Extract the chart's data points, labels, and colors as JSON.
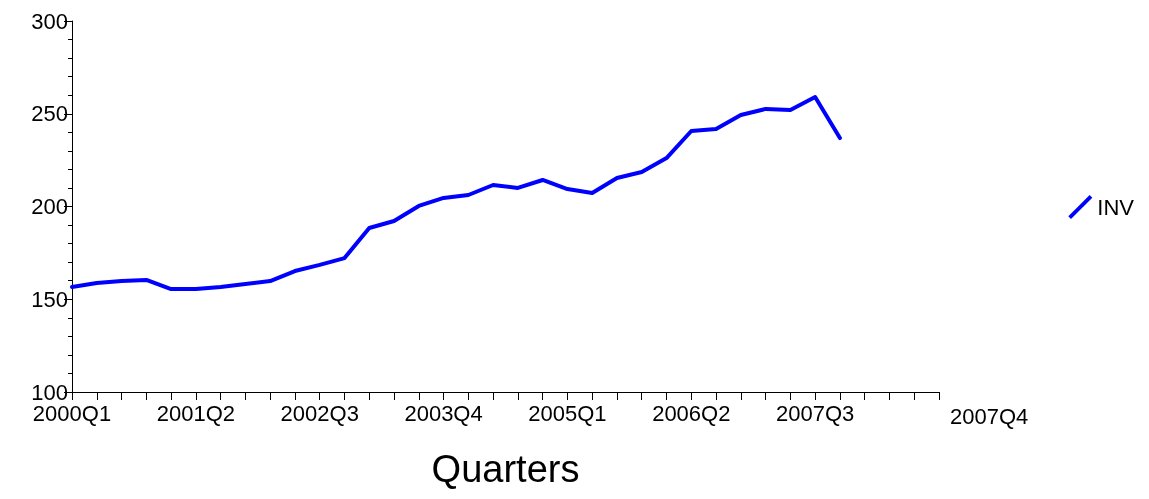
{
  "chart_data": {
    "type": "line",
    "xlabel": "Quarters",
    "categories": [
      "2000Q1",
      null,
      null,
      null,
      null,
      "2001Q2",
      null,
      null,
      null,
      null,
      "2002Q3",
      null,
      null,
      null,
      null,
      "2003Q4",
      null,
      null,
      null,
      null,
      "2005Q1",
      null,
      null,
      null,
      null,
      "2006Q2",
      null,
      null,
      null,
      null,
      "2007Q3",
      null,
      null,
      null,
      null,
      null
    ],
    "series": [
      {
        "name": "INV",
        "color": "#0000ff",
        "values": [
          156.6,
          158.8,
          159.8,
          160.4,
          155.5,
          155.5,
          156.6,
          158.2,
          159.8,
          165.2,
          168.5,
          172.2,
          188.4,
          192.2,
          200.3,
          204.6,
          206.2,
          211.6,
          210,
          214.3,
          209.4,
          207.3,
          215.4,
          218.6,
          226.1,
          240.7,
          241.8,
          249.3,
          252.6,
          252,
          259,
          236.9,
          null,
          null,
          null,
          null
        ]
      }
    ],
    "ylim": [
      100,
      300
    ],
    "yticks": [
      100,
      150,
      200,
      250,
      300
    ],
    "grid": false,
    "legend": "right",
    "marker": "none",
    "line_style": "solid",
    "annotations": [
      "2007Q4"
    ]
  }
}
